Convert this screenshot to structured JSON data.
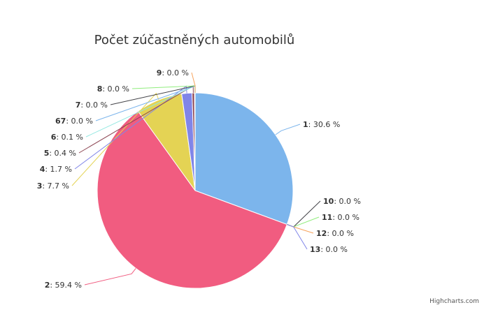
{
  "chart_data": {
    "type": "pie",
    "title": "Počet zúčastněných automobilů",
    "credits": "Highcharts.com",
    "unit": "%",
    "slices": [
      {
        "name": "1",
        "value": 30.6,
        "label": "30.6 %",
        "color": "#7cb5ec"
      },
      {
        "name": "10",
        "value": 0.0,
        "label": "0.0 %",
        "color": "#434348"
      },
      {
        "name": "11",
        "value": 0.0,
        "label": "0.0 %",
        "color": "#90ed7d"
      },
      {
        "name": "12",
        "value": 0.0,
        "label": "0.0 %",
        "color": "#f7a35c"
      },
      {
        "name": "13",
        "value": 0.0,
        "label": "0.0 %",
        "color": "#8085e9"
      },
      {
        "name": "2",
        "value": 59.4,
        "label": "59.4 %",
        "color": "#f15c80"
      },
      {
        "name": "3",
        "value": 7.7,
        "label": "7.7 %",
        "color": "#e4d354"
      },
      {
        "name": "4",
        "value": 1.7,
        "label": "1.7 %",
        "color": "#8085e8"
      },
      {
        "name": "5",
        "value": 0.4,
        "label": "0.4 %",
        "color": "#8d4653"
      },
      {
        "name": "6",
        "value": 0.1,
        "label": "0.1 %",
        "color": "#91e8e1"
      },
      {
        "name": "67",
        "value": 0.0,
        "label": "0.0 %",
        "color": "#7cb5ec"
      },
      {
        "name": "7",
        "value": 0.0,
        "label": "0.0 %",
        "color": "#434348"
      },
      {
        "name": "8",
        "value": 0.0,
        "label": "0.0 %",
        "color": "#90ed7d"
      },
      {
        "name": "9",
        "value": 0.0,
        "label": "0.0 %",
        "color": "#f7a35c"
      }
    ]
  }
}
